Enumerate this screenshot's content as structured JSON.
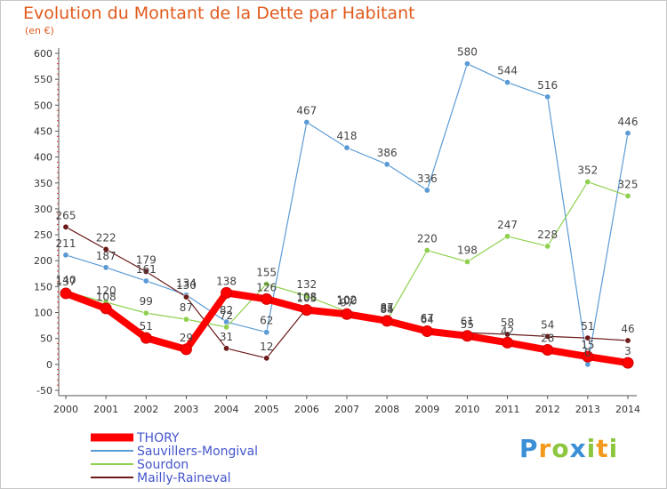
{
  "title": "Evolution du Montant de la Dette par Habitant",
  "unit": "(en €)",
  "logo": {
    "letters": [
      "P",
      "r",
      "o",
      "x",
      "i",
      "t",
      "i"
    ]
  },
  "chart_data": {
    "type": "line",
    "x": [
      "2000",
      "2001",
      "2002",
      "2003",
      "2004",
      "2005",
      "2006",
      "2007",
      "2008",
      "2009",
      "2010",
      "2011",
      "2012",
      "2013",
      "2014"
    ],
    "ylim": [
      -50,
      600
    ],
    "yticks": [
      "-50",
      "0",
      "50",
      "100",
      "150",
      "200",
      "250",
      "300",
      "350",
      "400",
      "450",
      "500",
      "550",
      "600"
    ],
    "grid": false,
    "legend_position": "bottom-left",
    "series": [
      {
        "name": "THORY",
        "color": "#ff0000",
        "width": 8,
        "values": [
          137,
          108,
          51,
          29,
          138,
          126,
          105,
          97,
          84,
          64,
          55,
          42,
          28,
          15,
          3
        ],
        "labels": [
          "137",
          "108",
          "51",
          "29",
          "138",
          "126",
          "105",
          "97",
          "84",
          "64",
          "55",
          "42",
          "28",
          "15",
          "3"
        ]
      },
      {
        "name": "Sauvillers-Mongival",
        "color": "#5b9bd5",
        "width": 1.2,
        "values": [
          211,
          187,
          161,
          134,
          82,
          62,
          467,
          418,
          386,
          336,
          580,
          544,
          516,
          0,
          446
        ],
        "labels": [
          "211",
          "187",
          "161",
          "134",
          "82",
          "62",
          "467",
          "418",
          "386",
          "336",
          "580",
          "544",
          "516",
          "0",
          "446"
        ]
      },
      {
        "name": "Sourdon",
        "color": "#8fd14f",
        "width": 1.2,
        "values": [
          140,
          120,
          99,
          87,
          72,
          155,
          132,
          102,
          85,
          220,
          198,
          247,
          228,
          352,
          325
        ],
        "labels": [
          "140",
          "120",
          "99",
          "87",
          "72",
          "155",
          "132",
          "102",
          "85",
          "220",
          "198",
          "247",
          "228",
          "352",
          "325"
        ]
      },
      {
        "name": "Mailly-Raineval",
        "color": "#6b1a1a",
        "width": 1.2,
        "values": [
          265,
          222,
          179,
          130,
          31,
          12,
          108,
          100,
          87,
          67,
          61,
          58,
          54,
          51,
          46
        ],
        "labels": [
          "265",
          "222",
          "179",
          "130",
          "31",
          "12",
          "108",
          "100",
          "87",
          "67",
          "61",
          "58",
          "54",
          "51",
          "46"
        ]
      }
    ]
  }
}
